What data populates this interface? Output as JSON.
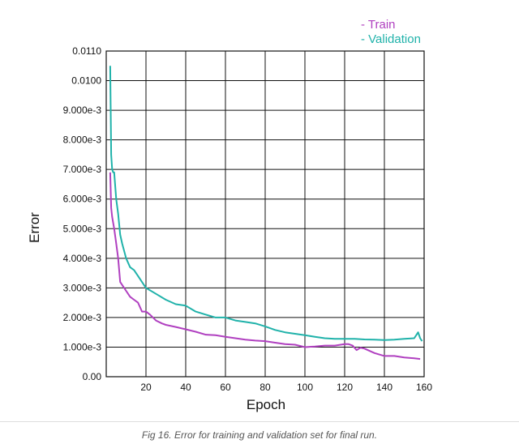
{
  "chart_data": {
    "type": "line",
    "title": "",
    "xlabel": "Epoch",
    "ylabel": "Error",
    "xlim": [
      0,
      160
    ],
    "ylim": [
      0,
      0.011
    ],
    "xticks": [
      20,
      40,
      60,
      80,
      100,
      120,
      140,
      160
    ],
    "xtick_labels": [
      "20",
      "40",
      "60",
      "80",
      "100",
      "120",
      "140",
      "160"
    ],
    "xgrid": [
      0,
      20,
      40,
      60,
      80,
      100,
      120,
      140,
      160
    ],
    "yticks": [
      0,
      0.001,
      0.002,
      0.003,
      0.004,
      0.005,
      0.006,
      0.007,
      0.008,
      0.009,
      0.01,
      0.011
    ],
    "ytick_labels": [
      "0.00",
      "1.000e-3",
      "2.000e-3",
      "3.000e-3",
      "4.000e-3",
      "5.000e-3",
      "6.000e-3",
      "7.000e-3",
      "8.000e-3",
      "9.000e-3",
      "0.0100",
      "0.0110"
    ],
    "grid": true,
    "legend_position": "top-right",
    "series": [
      {
        "name": "Train",
        "color": "#b040c0",
        "legend_label": "- Train",
        "x": [
          2,
          2.5,
          3,
          4,
          5,
          6,
          7,
          8,
          10,
          12,
          14,
          16,
          18,
          20,
          22,
          25,
          28,
          30,
          35,
          40,
          45,
          50,
          55,
          60,
          65,
          70,
          75,
          80,
          85,
          90,
          95,
          100,
          105,
          110,
          115,
          120,
          122,
          124,
          126,
          128,
          130,
          135,
          140,
          145,
          150,
          155,
          158
        ],
        "values": [
          0.0069,
          0.0057,
          0.0054,
          0.005,
          0.0045,
          0.004,
          0.0032,
          0.0031,
          0.0029,
          0.0027,
          0.0026,
          0.0025,
          0.0022,
          0.0022,
          0.0021,
          0.0019,
          0.0018,
          0.00175,
          0.00168,
          0.0016,
          0.00152,
          0.00142,
          0.0014,
          0.00135,
          0.0013,
          0.00125,
          0.00122,
          0.0012,
          0.00115,
          0.0011,
          0.00108,
          0.001,
          0.00102,
          0.00105,
          0.00105,
          0.0011,
          0.0011,
          0.00105,
          0.0009,
          0.00098,
          0.00095,
          0.0008,
          0.0007,
          0.0007,
          0.00065,
          0.00062,
          0.0006
        ]
      },
      {
        "name": "Validation",
        "color": "#20b2aa",
        "legend_label": "- Validation",
        "x": [
          2,
          2.5,
          3,
          3.5,
          4,
          5,
          6,
          7,
          8,
          10,
          12,
          14,
          16,
          18,
          20,
          25,
          30,
          35,
          40,
          45,
          50,
          55,
          60,
          65,
          70,
          75,
          80,
          85,
          90,
          95,
          100,
          105,
          110,
          115,
          120,
          125,
          130,
          135,
          140,
          145,
          150,
          155,
          157,
          158,
          159
        ],
        "values": [
          0.0105,
          0.0075,
          0.007,
          0.0069,
          0.0069,
          0.006,
          0.0055,
          0.0048,
          0.0045,
          0.004,
          0.0037,
          0.0036,
          0.0034,
          0.0032,
          0.003,
          0.0028,
          0.0026,
          0.00245,
          0.0024,
          0.0022,
          0.0021,
          0.002,
          0.002,
          0.0019,
          0.00185,
          0.0018,
          0.0017,
          0.00158,
          0.0015,
          0.00145,
          0.0014,
          0.00135,
          0.0013,
          0.00128,
          0.00128,
          0.00128,
          0.00126,
          0.00125,
          0.00124,
          0.00125,
          0.00128,
          0.0013,
          0.0015,
          0.0013,
          0.0012
        ]
      }
    ]
  },
  "caption": "Fig 16. Error for training and validation set for final run."
}
